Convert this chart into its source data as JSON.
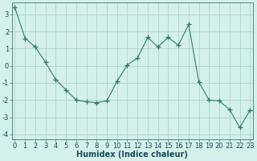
{
  "x": [
    0,
    1,
    2,
    3,
    4,
    5,
    6,
    7,
    8,
    9,
    10,
    11,
    12,
    13,
    14,
    15,
    16,
    17,
    18,
    19,
    20,
    21,
    22,
    23
  ],
  "y": [
    3.4,
    1.6,
    1.1,
    0.2,
    -0.8,
    -1.4,
    -2.0,
    -2.1,
    -2.15,
    -2.05,
    -0.9,
    0.05,
    0.45,
    1.65,
    1.1,
    1.65,
    1.2,
    2.4,
    -0.95,
    -2.0,
    -2.05,
    -2.55,
    -3.6,
    -2.6
  ],
  "line_color": "#2e7d6e",
  "marker": "+",
  "marker_size": 4,
  "bg_color": "#d4f0eb",
  "grid_color": "#b0d4ce",
  "xlabel": "Humidex (Indice chaleur)",
  "ylim": [
    -4.3,
    3.7
  ],
  "xlim": [
    -0.3,
    23.3
  ],
  "yticks": [
    -4,
    -3,
    -2,
    -1,
    0,
    1,
    2,
    3
  ],
  "xticks": [
    0,
    1,
    2,
    3,
    4,
    5,
    6,
    7,
    8,
    9,
    10,
    11,
    12,
    13,
    14,
    15,
    16,
    17,
    18,
    19,
    20,
    21,
    22,
    23
  ],
  "label_fontsize": 7,
  "tick_fontsize": 6
}
